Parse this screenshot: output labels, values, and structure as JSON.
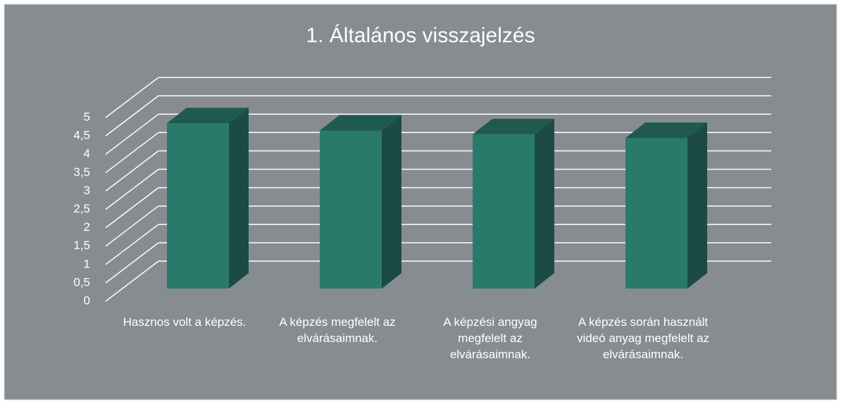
{
  "chart_data": {
    "type": "bar3d",
    "title": "1. Általános visszajelzés",
    "categories": [
      "Hasznos volt a képzés.",
      "A képzés megfelelt az elvárásaimnak.",
      "A képzési angyag megfelelt az elvárásaimnak.",
      "A képzés során használt videó anyag megfelelt az elvárásaimnak."
    ],
    "values": [
      4.5,
      4.3,
      4.2,
      4.1
    ],
    "color": "#2a7a6b",
    "ylim": [
      0,
      5
    ],
    "yticks": [
      0,
      {
        "value": 0.5,
        "label": "0,5"
      },
      1,
      {
        "value": 1.5,
        "label": "1,5"
      },
      2,
      {
        "value": 2.5,
        "label": "2,5"
      },
      3,
      {
        "value": 3.5,
        "label": "3,5"
      },
      4,
      {
        "value": 4.5,
        "label": "4,5"
      },
      5
    ],
    "grid": true
  }
}
